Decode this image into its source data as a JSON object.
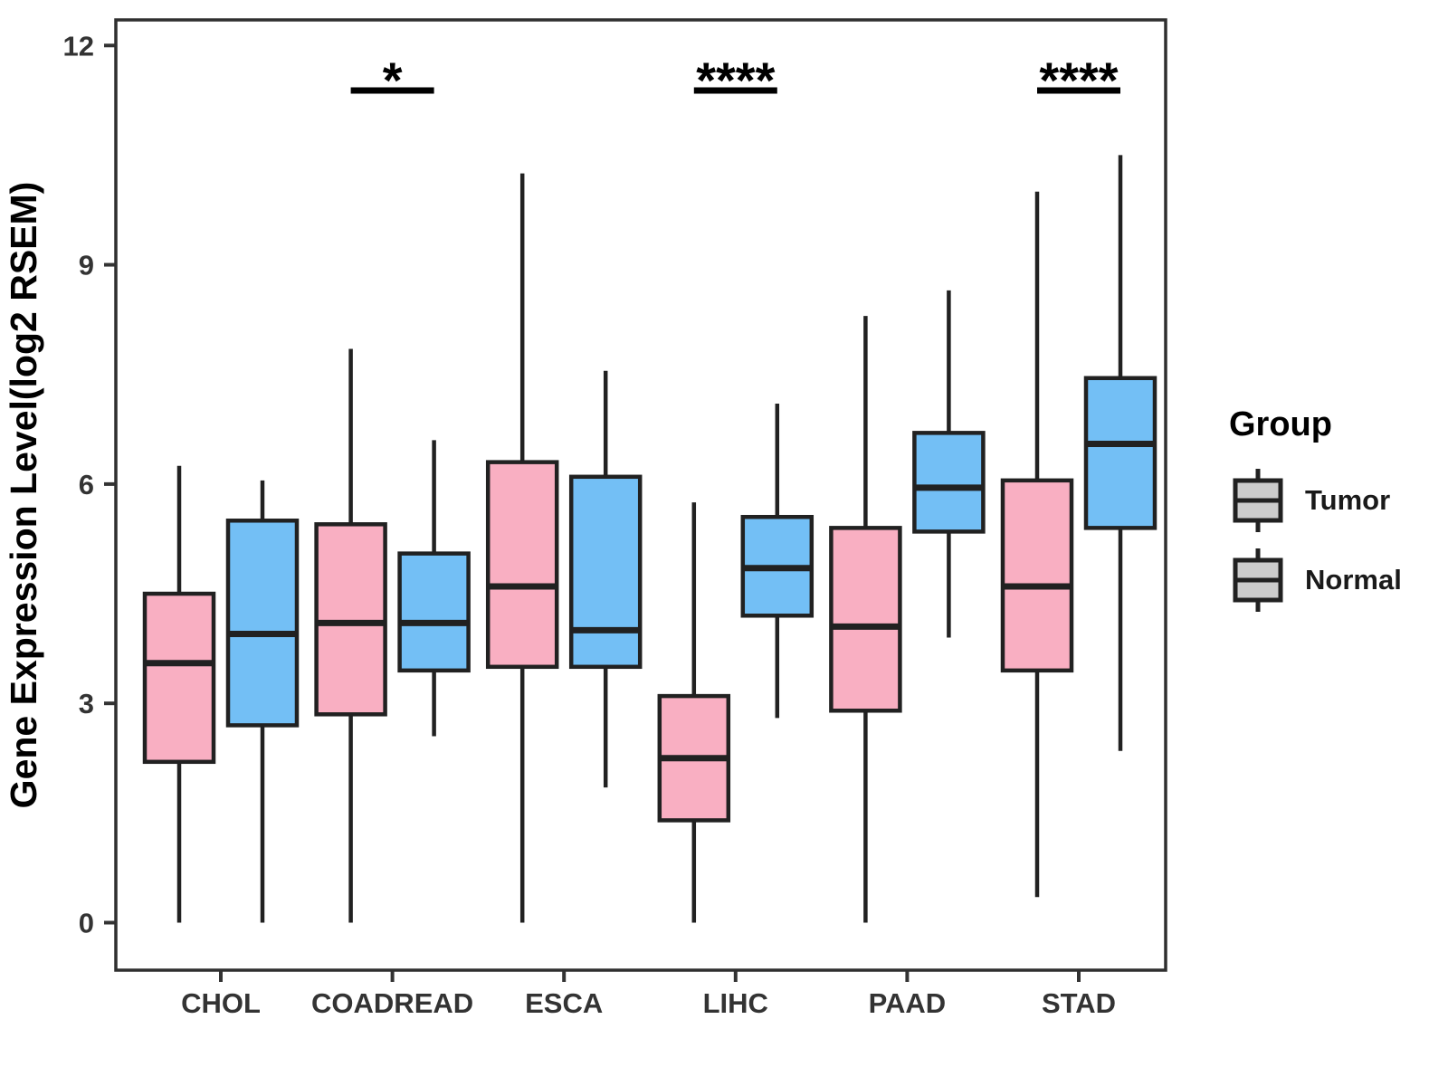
{
  "figure": {
    "background": "#ffffff"
  },
  "legend": {
    "title": "Group",
    "items": [
      {
        "label": "Tumor",
        "color": "#F9AFC2"
      },
      {
        "label": "Normal",
        "color": "#73BFF5"
      }
    ]
  },
  "chart_data": {
    "type": "boxplot",
    "title": "",
    "xlabel": "",
    "ylabel": "Gene Expression Level(log2 RSEM)",
    "categories": [
      "CHOL",
      "COADREAD",
      "ESCA",
      "LIHC",
      "PAAD",
      "STAD"
    ],
    "yticks": [
      0,
      3,
      6,
      9,
      12
    ],
    "ylim": [
      -0.65,
      12.35
    ],
    "grid": false,
    "legend_position": "right",
    "box_stroke": "#212121",
    "axis_color": "#333333",
    "series": [
      {
        "name": "Tumor",
        "color": "#F9AFC2",
        "boxes": [
          {
            "category": "CHOL",
            "min": 0.0,
            "q1": 2.2,
            "median": 3.55,
            "q3": 4.5,
            "max": 6.25
          },
          {
            "category": "COADREAD",
            "min": 0.0,
            "q1": 2.85,
            "median": 4.1,
            "q3": 5.45,
            "max": 7.85
          },
          {
            "category": "ESCA",
            "min": 0.0,
            "q1": 3.5,
            "median": 4.6,
            "q3": 6.3,
            "max": 10.25
          },
          {
            "category": "LIHC",
            "min": 0.0,
            "q1": 1.4,
            "median": 2.25,
            "q3": 3.1,
            "max": 5.75
          },
          {
            "category": "PAAD",
            "min": 0.0,
            "q1": 2.9,
            "median": 4.05,
            "q3": 5.4,
            "max": 8.3
          },
          {
            "category": "STAD",
            "min": 0.35,
            "q1": 3.45,
            "median": 4.6,
            "q3": 6.05,
            "max": 10.0
          }
        ]
      },
      {
        "name": "Normal",
        "color": "#73BFF5",
        "boxes": [
          {
            "category": "CHOL",
            "min": 0.0,
            "q1": 2.7,
            "median": 3.95,
            "q3": 5.5,
            "max": 6.05
          },
          {
            "category": "COADREAD",
            "min": 2.55,
            "q1": 3.45,
            "median": 4.1,
            "q3": 5.05,
            "max": 6.6
          },
          {
            "category": "ESCA",
            "min": 1.85,
            "q1": 3.5,
            "median": 4.0,
            "q3": 6.1,
            "max": 7.55
          },
          {
            "category": "LIHC",
            "min": 2.8,
            "q1": 4.2,
            "median": 4.85,
            "q3": 5.55,
            "max": 7.1
          },
          {
            "category": "PAAD",
            "min": 3.9,
            "q1": 5.35,
            "median": 5.95,
            "q3": 6.7,
            "max": 8.65
          },
          {
            "category": "STAD",
            "min": 2.35,
            "q1": 5.4,
            "median": 6.55,
            "q3": 7.45,
            "max": 10.5
          }
        ]
      }
    ],
    "significance": [
      {
        "category": "COADREAD",
        "label": "*"
      },
      {
        "category": "LIHC",
        "label": "****"
      },
      {
        "category": "STAD",
        "label": "****"
      }
    ]
  }
}
